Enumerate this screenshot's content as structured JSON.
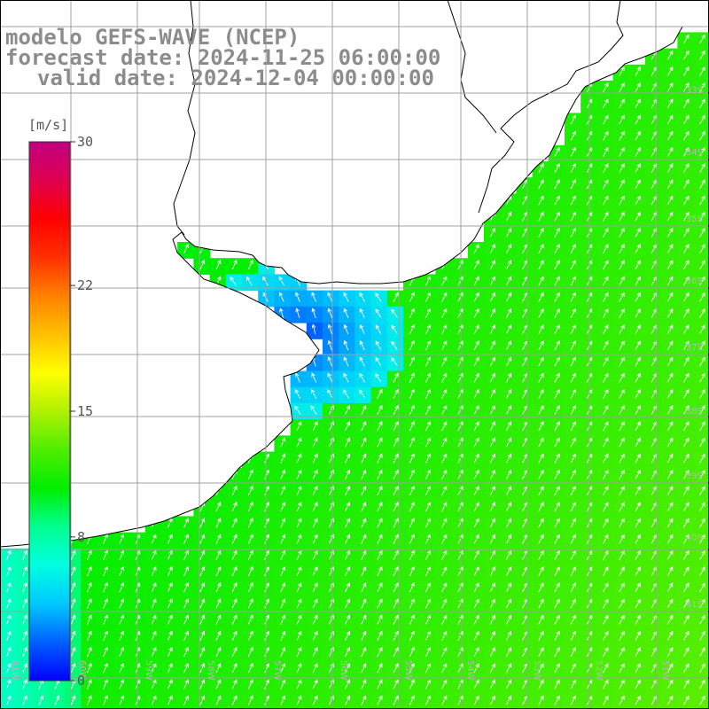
{
  "title": {
    "model": "modelo GEFS-WAVE (NCEP)",
    "forecast_date": "forecast date: 2024-11-25 06:00:00",
    "valid_date": "valid date: 2024-12-04 00:00:00"
  },
  "colorbar": {
    "unit": "[m/s]",
    "ticks": [
      "0",
      "8",
      "15",
      "22",
      "30"
    ],
    "tick_values": [
      0,
      8,
      15,
      22,
      30
    ],
    "range": [
      0,
      30
    ],
    "colors": [
      "#0000ff",
      "#0060ff",
      "#00c8ff",
      "#00ffe0",
      "#00ff90",
      "#00ee00",
      "#50ee00",
      "#b0f000",
      "#ffff00",
      "#ffc000",
      "#ff8000",
      "#ff3000",
      "#ff0000",
      "#e00050",
      "#c00080"
    ]
  },
  "map": {
    "region": "Río de la Plata / Uruguay coast",
    "lat_labels": [
      "33S",
      "34S",
      "35S",
      "36S",
      "37S",
      "38S",
      "39S",
      "40S",
      "41S"
    ],
    "lon_labels": [
      "61W",
      "60W",
      "59W",
      "58W",
      "57W",
      "56W",
      "55W",
      "54W",
      "53W",
      "52W",
      "51W"
    ],
    "field": "wind speed with direction arrows",
    "land_color": "#ffffff",
    "grid_color": "#a0a0a0",
    "coast_color": "#000000",
    "arrow_color": "#ffffff"
  }
}
